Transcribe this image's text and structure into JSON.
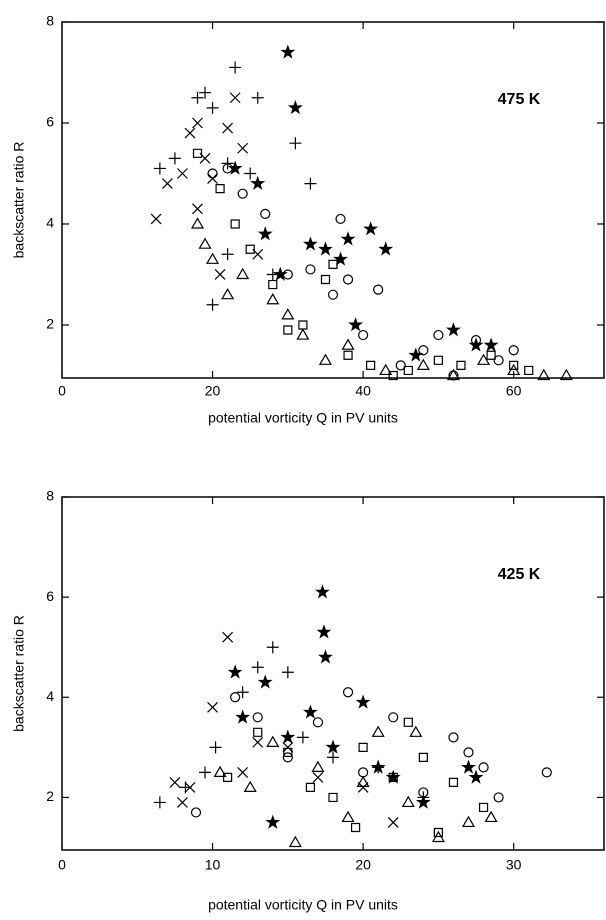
{
  "chart_data": [
    {
      "type": "scatter",
      "annotation": "475 K",
      "x_label": "potential vorticity Q in PV units",
      "y_label": "backscatter ratio R",
      "xlim": [
        0,
        72
      ],
      "ylim": [
        0.95,
        8
      ],
      "xticks": [
        0,
        20,
        40,
        60
      ],
      "yticks": [
        2,
        4,
        6,
        8
      ],
      "series": [
        {
          "marker": "x",
          "color": "#000000",
          "x": [
            12.5,
            14,
            16,
            17,
            18,
            19,
            20,
            22,
            23,
            24,
            18,
            21,
            26
          ],
          "values": [
            4.1,
            4.8,
            5.0,
            5.8,
            6.0,
            5.3,
            4.9,
            5.9,
            6.5,
            5.5,
            4.3,
            3.0,
            3.4
          ]
        },
        {
          "marker": "plus",
          "color": "#000000",
          "x": [
            13,
            15,
            18,
            19,
            20,
            22,
            23,
            25,
            26,
            31,
            33,
            20,
            22,
            28
          ],
          "values": [
            5.1,
            5.3,
            6.5,
            6.6,
            6.3,
            5.2,
            7.1,
            5.0,
            6.5,
            5.6,
            4.8,
            2.4,
            3.4,
            3.0
          ]
        },
        {
          "marker": "circle",
          "color": "#000000",
          "x": [
            20,
            22,
            24,
            27,
            30,
            33,
            36,
            37,
            38,
            40,
            42,
            45,
            48,
            50,
            52,
            55,
            58,
            60
          ],
          "values": [
            5.0,
            5.1,
            4.6,
            4.2,
            3.0,
            3.1,
            2.6,
            4.1,
            2.9,
            1.8,
            2.7,
            1.2,
            1.5,
            1.8,
            1.0,
            1.7,
            1.3,
            1.5
          ]
        },
        {
          "marker": "square",
          "color": "#000000",
          "x": [
            18,
            21,
            23,
            25,
            28,
            30,
            32,
            35,
            36,
            38,
            41,
            44,
            46,
            50,
            53,
            57,
            60,
            62
          ],
          "values": [
            5.4,
            4.7,
            4.0,
            3.5,
            2.8,
            1.9,
            2.0,
            2.9,
            3.2,
            1.4,
            1.2,
            1.0,
            1.1,
            1.3,
            1.2,
            1.4,
            1.2,
            1.1
          ]
        },
        {
          "marker": "triangle",
          "color": "#000000",
          "x": [
            18,
            19,
            20,
            22,
            24,
            28,
            30,
            32,
            35,
            38,
            43,
            48,
            52,
            56,
            60,
            64,
            67
          ],
          "values": [
            4.0,
            3.6,
            3.3,
            2.6,
            3.0,
            2.5,
            2.2,
            1.8,
            1.3,
            1.6,
            1.1,
            1.2,
            1.0,
            1.3,
            1.1,
            1.0,
            1.0
          ]
        },
        {
          "marker": "star",
          "color": "#000000",
          "x": [
            23,
            26,
            27,
            29,
            30,
            31,
            33,
            35,
            37,
            38,
            39,
            41,
            43,
            47,
            52,
            55,
            57
          ],
          "values": [
            5.1,
            4.8,
            3.8,
            3.0,
            7.4,
            6.3,
            3.6,
            3.5,
            3.3,
            3.7,
            2.0,
            3.9,
            3.5,
            1.4,
            1.9,
            1.6,
            1.6
          ]
        }
      ]
    },
    {
      "type": "scatter",
      "annotation": "425 K",
      "x_label": "potential vorticity Q in PV units",
      "y_label": "backscatter ratio R",
      "xlim": [
        0,
        36
      ],
      "ylim": [
        0.95,
        8
      ],
      "xticks": [
        0,
        10,
        20,
        30
      ],
      "yticks": [
        2,
        4,
        6,
        8
      ],
      "series": [
        {
          "marker": "x",
          "color": "#000000",
          "x": [
            7.5,
            8,
            8.5,
            10,
            11,
            12,
            13,
            15,
            17,
            20,
            22
          ],
          "values": [
            2.3,
            1.9,
            2.2,
            3.8,
            5.2,
            2.5,
            3.1,
            3.0,
            2.4,
            2.2,
            1.5
          ]
        },
        {
          "marker": "plus",
          "color": "#000000",
          "x": [
            6.5,
            8.2,
            9.5,
            10.2,
            12,
            13,
            14,
            15,
            16,
            18,
            21,
            24
          ],
          "values": [
            1.9,
            2.2,
            2.5,
            3.0,
            4.1,
            4.6,
            5.0,
            4.5,
            3.2,
            2.8,
            2.6,
            2.0
          ]
        },
        {
          "marker": "circle",
          "color": "#000000",
          "x": [
            8.9,
            11.5,
            13,
            15,
            17,
            19,
            20,
            22,
            24,
            26,
            27,
            28,
            29,
            32.2
          ],
          "values": [
            1.7,
            4.0,
            3.6,
            2.8,
            3.5,
            4.1,
            2.5,
            3.6,
            2.1,
            3.2,
            2.9,
            2.6,
            2.0,
            2.5
          ]
        },
        {
          "marker": "square",
          "color": "#000000",
          "x": [
            11,
            13,
            15,
            16.5,
            18,
            19.5,
            20,
            22,
            23,
            24,
            25,
            26,
            28
          ],
          "values": [
            2.4,
            3.3,
            2.9,
            2.2,
            2.0,
            1.4,
            3.0,
            2.4,
            3.5,
            2.8,
            1.3,
            2.3,
            1.8
          ]
        },
        {
          "marker": "triangle",
          "color": "#000000",
          "x": [
            10.5,
            12.5,
            14,
            15.5,
            17,
            19,
            20,
            21,
            23,
            23.5,
            25,
            27,
            28.5
          ],
          "values": [
            2.5,
            2.2,
            3.1,
            1.1,
            2.6,
            1.6,
            2.3,
            3.3,
            1.9,
            3.3,
            1.2,
            1.5,
            1.6
          ]
        },
        {
          "marker": "star",
          "color": "#000000",
          "x": [
            11.5,
            12,
            13.5,
            14,
            15,
            16.5,
            17.3,
            17.4,
            17.5,
            18,
            20,
            21,
            22,
            24,
            27,
            27.5
          ],
          "values": [
            4.5,
            3.6,
            4.3,
            1.5,
            3.2,
            3.7,
            6.1,
            5.3,
            4.8,
            3.0,
            3.9,
            2.6,
            2.4,
            1.9,
            2.6,
            2.4
          ]
        }
      ]
    }
  ]
}
